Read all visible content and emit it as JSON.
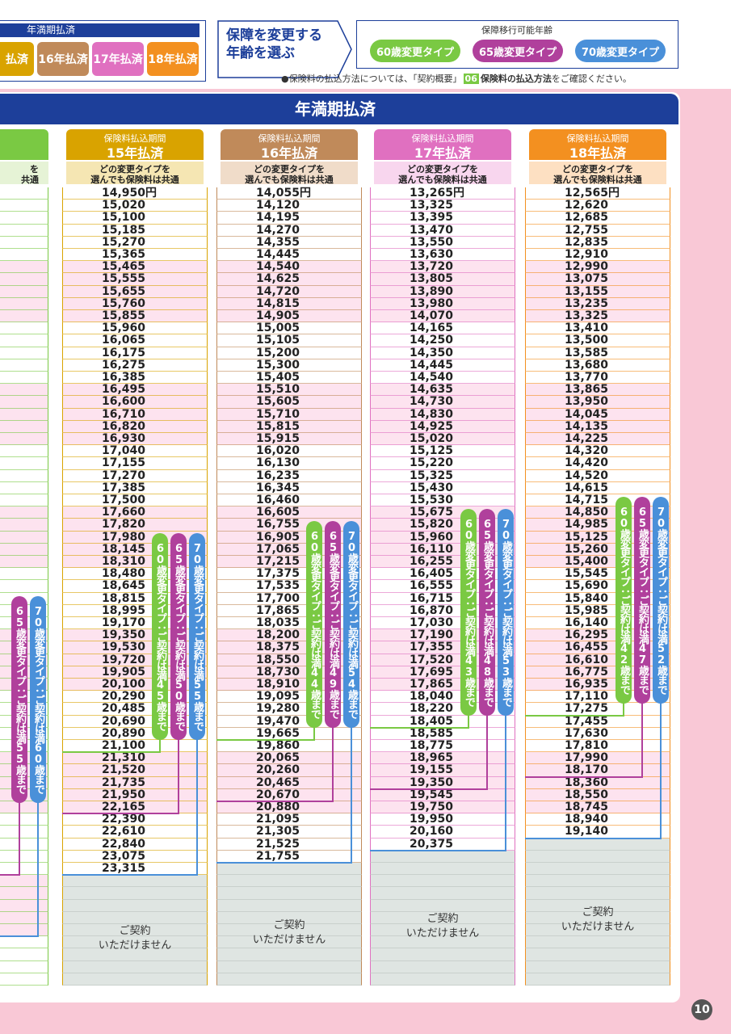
{
  "top_panel": {
    "title": "年満期払済",
    "buttons": [
      "払済",
      "16年払済",
      "17年払済",
      "18年払済"
    ]
  },
  "select_age": {
    "line1": "保障を変更する",
    "line2": "年齢を選ぶ"
  },
  "legend": {
    "title": "保障移行可能年齢",
    "items": [
      "60歳変更タイプ",
      "65歳変更タイプ",
      "70歳変更タイプ"
    ]
  },
  "note": {
    "prefix": "●保険料の払込方法については、「契約概要」",
    "badge": "06",
    "bold": "保険料の払込方法",
    "suffix": "をご確認ください。"
  },
  "banner": "年満期払済",
  "partial_column": {
    "subheader": [
      "を",
      "共通"
    ],
    "pills": [
      "65歳変更タイプ：ご契約は満55歳まで",
      "70歳変更タイプ：ご契約は満60歳まで"
    ]
  },
  "columns": [
    {
      "period_label": "保険料払込期間",
      "period": "15年払済",
      "subheader": [
        "どの変更タイプを",
        "選んでも保険料は共通"
      ],
      "premiums": [
        "14,950円",
        "15,020",
        "15,100",
        "15,185",
        "15,270",
        "15,365",
        "15,465",
        "15,555",
        "15,655",
        "15,760",
        "15,855",
        "15,960",
        "16,065",
        "16,175",
        "16,275",
        "16,385",
        "16,495",
        "16,600",
        "16,710",
        "16,820",
        "16,930",
        "17,040",
        "17,155",
        "17,270",
        "17,385",
        "17,500",
        "17,660",
        "17,820",
        "17,980",
        "18,145",
        "18,310",
        "18,480",
        "18,645",
        "18,815",
        "18,995",
        "19,170",
        "19,350",
        "19,530",
        "19,720",
        "19,905",
        "20,100",
        "20,290",
        "20,485",
        "20,690",
        "20,890",
        "21,100",
        "21,310",
        "21,520",
        "21,735",
        "21,950",
        "22,165",
        "22,390",
        "22,610",
        "22,840",
        "23,075",
        "23,315"
      ],
      "pills": [
        "60歳変更タイプ：ご契約は満45歳まで",
        "65歳変更タイプ：ご契約は満50歳まで",
        "70歳変更タイプ：ご契約は満55歳まで"
      ],
      "unavailable": [
        "ご契約",
        "いただけません"
      ]
    },
    {
      "period_label": "保険料払込期間",
      "period": "16年払済",
      "subheader": [
        "どの変更タイプを",
        "選んでも保険料は共通"
      ],
      "premiums": [
        "14,055円",
        "14,120",
        "14,195",
        "14,270",
        "14,355",
        "14,445",
        "14,540",
        "14,625",
        "14,720",
        "14,815",
        "14,905",
        "15,005",
        "15,105",
        "15,200",
        "15,300",
        "15,405",
        "15,510",
        "15,605",
        "15,710",
        "15,815",
        "15,915",
        "16,020",
        "16,130",
        "16,235",
        "16,345",
        "16,460",
        "16,605",
        "16,755",
        "16,905",
        "17,065",
        "17,215",
        "17,375",
        "17,535",
        "17,700",
        "17,865",
        "18,035",
        "18,200",
        "18,375",
        "18,550",
        "18,730",
        "18,910",
        "19,095",
        "19,280",
        "19,470",
        "19,665",
        "19,860",
        "20,065",
        "20,260",
        "20,465",
        "20,670",
        "20,880",
        "21,095",
        "21,305",
        "21,525",
        "21,755"
      ],
      "pills": [
        "60歳変更タイプ：ご契約は満44歳まで",
        "65歳変更タイプ：ご契約は満49歳まで",
        "70歳変更タイプ：ご契約は満54歳まで"
      ],
      "unavailable": [
        "ご契約",
        "いただけません"
      ]
    },
    {
      "period_label": "保険料払込期間",
      "period": "17年払済",
      "subheader": [
        "どの変更タイプを",
        "選んでも保険料は共通"
      ],
      "premiums": [
        "13,265円",
        "13,325",
        "13,395",
        "13,470",
        "13,550",
        "13,630",
        "13,720",
        "13,805",
        "13,890",
        "13,980",
        "14,070",
        "14,165",
        "14,250",
        "14,350",
        "14,445",
        "14,540",
        "14,635",
        "14,730",
        "14,830",
        "14,925",
        "15,020",
        "15,125",
        "15,220",
        "15,325",
        "15,430",
        "15,530",
        "15,675",
        "15,820",
        "15,960",
        "16,110",
        "16,255",
        "16,405",
        "16,555",
        "16,715",
        "16,870",
        "17,030",
        "17,190",
        "17,355",
        "17,520",
        "17,695",
        "17,865",
        "18,040",
        "18,220",
        "18,405",
        "18,585",
        "18,775",
        "18,965",
        "19,155",
        "19,350",
        "19,545",
        "19,750",
        "19,950",
        "20,160",
        "20,375"
      ],
      "pills": [
        "60歳変更タイプ：ご契約は満43歳まで",
        "65歳変更タイプ：ご契約は満48歳まで",
        "70歳変更タイプ：ご契約は満53歳まで"
      ],
      "unavailable": [
        "ご契約",
        "いただけません"
      ]
    },
    {
      "period_label": "保険料払込期間",
      "period": "18年払済",
      "subheader": [
        "どの変更タイプを",
        "選んでも保険料は共通"
      ],
      "premiums": [
        "12,565円",
        "12,620",
        "12,685",
        "12,755",
        "12,835",
        "12,910",
        "12,990",
        "13,075",
        "13,155",
        "13,235",
        "13,325",
        "13,410",
        "13,500",
        "13,585",
        "13,680",
        "13,770",
        "13,865",
        "13,950",
        "14,045",
        "14,135",
        "14,225",
        "14,320",
        "14,420",
        "14,520",
        "14,615",
        "14,715",
        "14,850",
        "14,985",
        "15,125",
        "15,260",
        "15,400",
        "15,545",
        "15,690",
        "15,840",
        "15,985",
        "16,140",
        "16,295",
        "16,455",
        "16,610",
        "16,775",
        "16,935",
        "17,110",
        "17,275",
        "17,455",
        "17,630",
        "17,810",
        "17,990",
        "18,170",
        "18,360",
        "18,550",
        "18,745",
        "18,940",
        "19,140"
      ],
      "pills": [
        "60歳変更タイプ：ご契約は満42歳まで",
        "65歳変更タイプ：ご契約は満47歳まで",
        "70歳変更タイプ：ご契約は満52歳まで"
      ],
      "unavailable": [
        "ご契約",
        "いただけません"
      ]
    }
  ],
  "page_number": "10"
}
